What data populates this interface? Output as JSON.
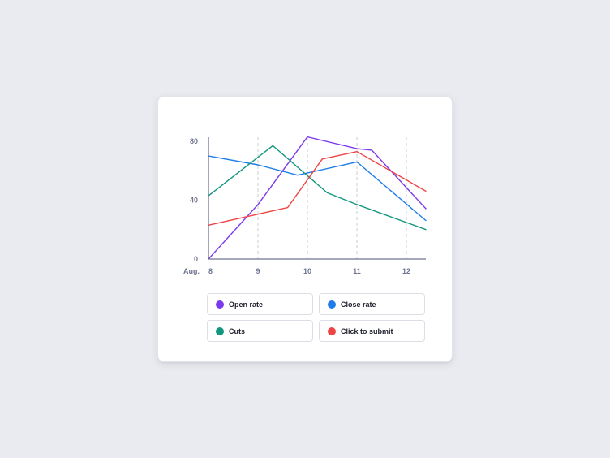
{
  "chart_data": {
    "type": "line",
    "x_prefix_label": "Aug.",
    "x": [
      8,
      9,
      10,
      11,
      12
    ],
    "xlim": [
      8,
      12.4
    ],
    "ylim": [
      0,
      85
    ],
    "y_ticks": [
      0,
      40,
      80
    ],
    "grid": "vertical dashed",
    "legend_placement": "bottom",
    "series": [
      {
        "name": "Open rate",
        "color": "#7c3aed",
        "points": [
          [
            8,
            0
          ],
          [
            9,
            37
          ],
          [
            10,
            83
          ],
          [
            11,
            75
          ],
          [
            11.3,
            74
          ],
          [
            12.4,
            34
          ]
        ]
      },
      {
        "name": "Close rate",
        "color": "#1e7ce8",
        "points": [
          [
            8,
            70
          ],
          [
            9,
            64
          ],
          [
            9.8,
            57
          ],
          [
            11,
            66
          ],
          [
            12.4,
            26
          ]
        ]
      },
      {
        "name": "Cuts",
        "color": "#12977e",
        "points": [
          [
            8,
            43
          ],
          [
            9.3,
            77
          ],
          [
            10.4,
            45
          ],
          [
            11,
            37
          ],
          [
            12.4,
            20
          ]
        ]
      },
      {
        "name": "Click to submit",
        "color": "#ef4444",
        "points": [
          [
            8,
            23
          ],
          [
            9.6,
            35
          ],
          [
            10.3,
            68
          ],
          [
            11,
            73
          ],
          [
            12.4,
            46
          ]
        ]
      }
    ]
  }
}
